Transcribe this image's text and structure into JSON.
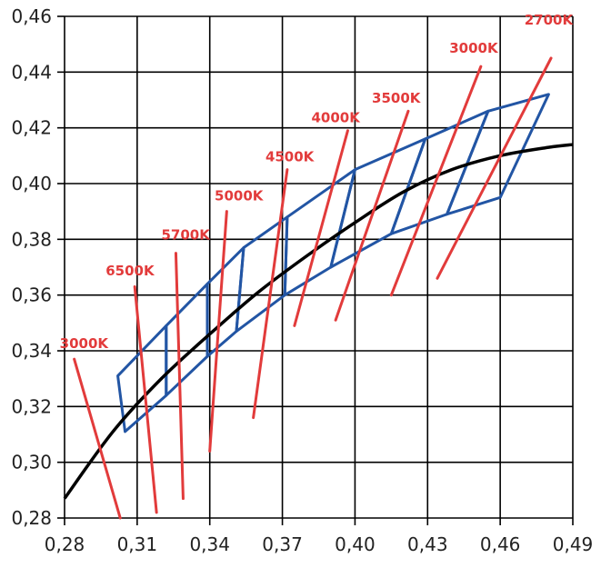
{
  "chart_data": {
    "type": "line",
    "xlim": [
      0.28,
      0.49
    ],
    "ylim": [
      0.28,
      0.46
    ],
    "x_ticks": [
      "0,28",
      "0,31",
      "0,34",
      "0,37",
      "0,40",
      "0,43",
      "0,46",
      "0,49"
    ],
    "y_ticks": [
      "0,28",
      "0,30",
      "0,32",
      "0,34",
      "0,36",
      "0,38",
      "0,40",
      "0,42",
      "0,44",
      "0,46"
    ],
    "grid": true,
    "colors": {
      "locus": "#000000",
      "quadrangles": "#2255a4",
      "cct_lines": "#e23b3b",
      "grid": "#000000"
    },
    "locus": [
      [
        0.28,
        0.287
      ],
      [
        0.3,
        0.311
      ],
      [
        0.32,
        0.33
      ],
      [
        0.34,
        0.346
      ],
      [
        0.36,
        0.361
      ],
      [
        0.38,
        0.374
      ],
      [
        0.4,
        0.386
      ],
      [
        0.42,
        0.397
      ],
      [
        0.44,
        0.405
      ],
      [
        0.46,
        0.41
      ],
      [
        0.48,
        0.413
      ],
      [
        0.49,
        0.414
      ]
    ],
    "quadrangles": [
      [
        [
          0.305,
          0.311
        ],
        [
          0.322,
          0.324
        ],
        [
          0.322,
          0.349
        ],
        [
          0.302,
          0.331
        ]
      ],
      [
        [
          0.322,
          0.324
        ],
        [
          0.339,
          0.338
        ],
        [
          0.339,
          0.364
        ],
        [
          0.322,
          0.349
        ]
      ],
      [
        [
          0.339,
          0.338
        ],
        [
          0.351,
          0.347
        ],
        [
          0.354,
          0.377
        ],
        [
          0.339,
          0.364
        ]
      ],
      [
        [
          0.351,
          0.347
        ],
        [
          0.371,
          0.36
        ],
        [
          0.372,
          0.388
        ],
        [
          0.354,
          0.377
        ]
      ],
      [
        [
          0.371,
          0.36
        ],
        [
          0.39,
          0.37
        ],
        [
          0.4,
          0.405
        ],
        [
          0.372,
          0.388
        ]
      ],
      [
        [
          0.39,
          0.37
        ],
        [
          0.415,
          0.382
        ],
        [
          0.429,
          0.416
        ],
        [
          0.4,
          0.405
        ]
      ],
      [
        [
          0.415,
          0.382
        ],
        [
          0.438,
          0.389
        ],
        [
          0.455,
          0.426
        ],
        [
          0.429,
          0.416
        ]
      ],
      [
        [
          0.438,
          0.389
        ],
        [
          0.46,
          0.395
        ],
        [
          0.48,
          0.432
        ],
        [
          0.455,
          0.426
        ]
      ]
    ],
    "cct_lines": [
      {
        "label": "3000K",
        "p1": [
          0.284,
          0.337
        ],
        "p2": [
          0.303,
          0.28
        ],
        "label_at": [
          0.278,
          0.341
        ]
      },
      {
        "label": "6500K",
        "p1": [
          0.309,
          0.363
        ],
        "p2": [
          0.318,
          0.282
        ],
        "label_at": [
          0.297,
          0.367
        ]
      },
      {
        "label": "5700K",
        "p1": [
          0.326,
          0.375
        ],
        "p2": [
          0.329,
          0.287
        ],
        "label_at": [
          0.32,
          0.38
        ]
      },
      {
        "label": "5000K",
        "p1": [
          0.347,
          0.39
        ],
        "p2": [
          0.34,
          0.304
        ],
        "label_at": [
          0.342,
          0.394
        ]
      },
      {
        "label": "4500K",
        "p1": [
          0.372,
          0.405
        ],
        "p2": [
          0.358,
          0.316
        ],
        "label_at": [
          0.363,
          0.408
        ]
      },
      {
        "label": "4000K",
        "p1": [
          0.397,
          0.419
        ],
        "p2": [
          0.375,
          0.349
        ],
        "label_at": [
          0.382,
          0.422
        ]
      },
      {
        "label": "3500K",
        "p1": [
          0.422,
          0.426
        ],
        "p2": [
          0.392,
          0.351
        ],
        "label_at": [
          0.407,
          0.429
        ]
      },
      {
        "label": "3000K",
        "p1": [
          0.452,
          0.442
        ],
        "p2": [
          0.415,
          0.36
        ],
        "label_at": [
          0.439,
          0.447
        ]
      },
      {
        "label": "2700K",
        "p1": [
          0.481,
          0.445
        ],
        "p2": [
          0.434,
          0.366
        ],
        "label_at": [
          0.47,
          0.457
        ]
      }
    ]
  }
}
